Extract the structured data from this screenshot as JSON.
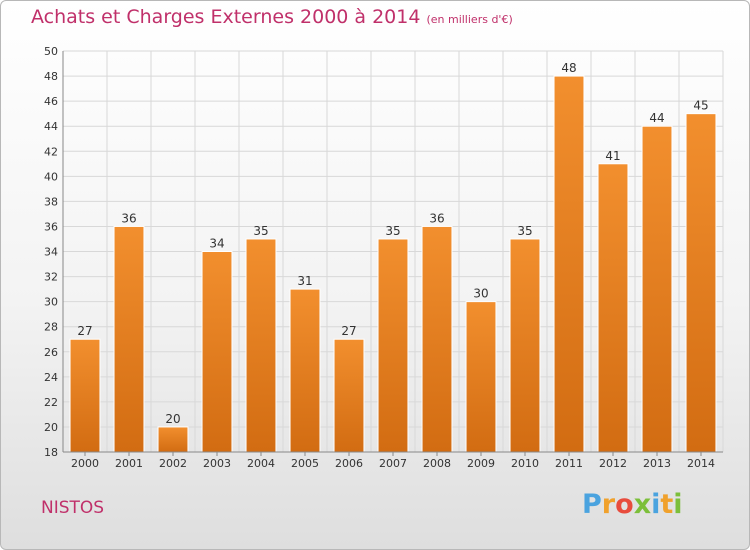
{
  "header": {
    "title": "Achats et Charges Externes 2000 à 2014",
    "subtitle": "(en milliers d'€)"
  },
  "footer": {
    "commune": "NISTOS",
    "logo_letters": [
      "P",
      "r",
      "o",
      "x",
      "i",
      "t",
      "i"
    ],
    "logo_colors": [
      "#4aa3df",
      "#f0a12c",
      "#e84c3d",
      "#7cbf3a",
      "#4aa3df",
      "#f0a12c",
      "#7cbf3a"
    ]
  },
  "colors": {
    "bar": "#f28f2e",
    "bar_dark": "#d26c12",
    "grid": "#d8d8d8",
    "axis": "#888888"
  },
  "chart_data": {
    "type": "bar",
    "title": "Achats et Charges Externes 2000 à 2014",
    "subtitle": "(en milliers d'€)",
    "categories": [
      "2000",
      "2001",
      "2002",
      "2003",
      "2004",
      "2005",
      "2006",
      "2007",
      "2008",
      "2009",
      "2010",
      "2011",
      "2012",
      "2013",
      "2014"
    ],
    "values": [
      27,
      36,
      20,
      34,
      35,
      31,
      27,
      35,
      36,
      30,
      35,
      48,
      41,
      44,
      45
    ],
    "ylim": [
      18,
      50
    ],
    "yticks": [
      18,
      20,
      22,
      24,
      26,
      28,
      30,
      32,
      34,
      36,
      38,
      40,
      42,
      44,
      46,
      48,
      50
    ],
    "grid": true,
    "xlabel": "",
    "ylabel": ""
  }
}
